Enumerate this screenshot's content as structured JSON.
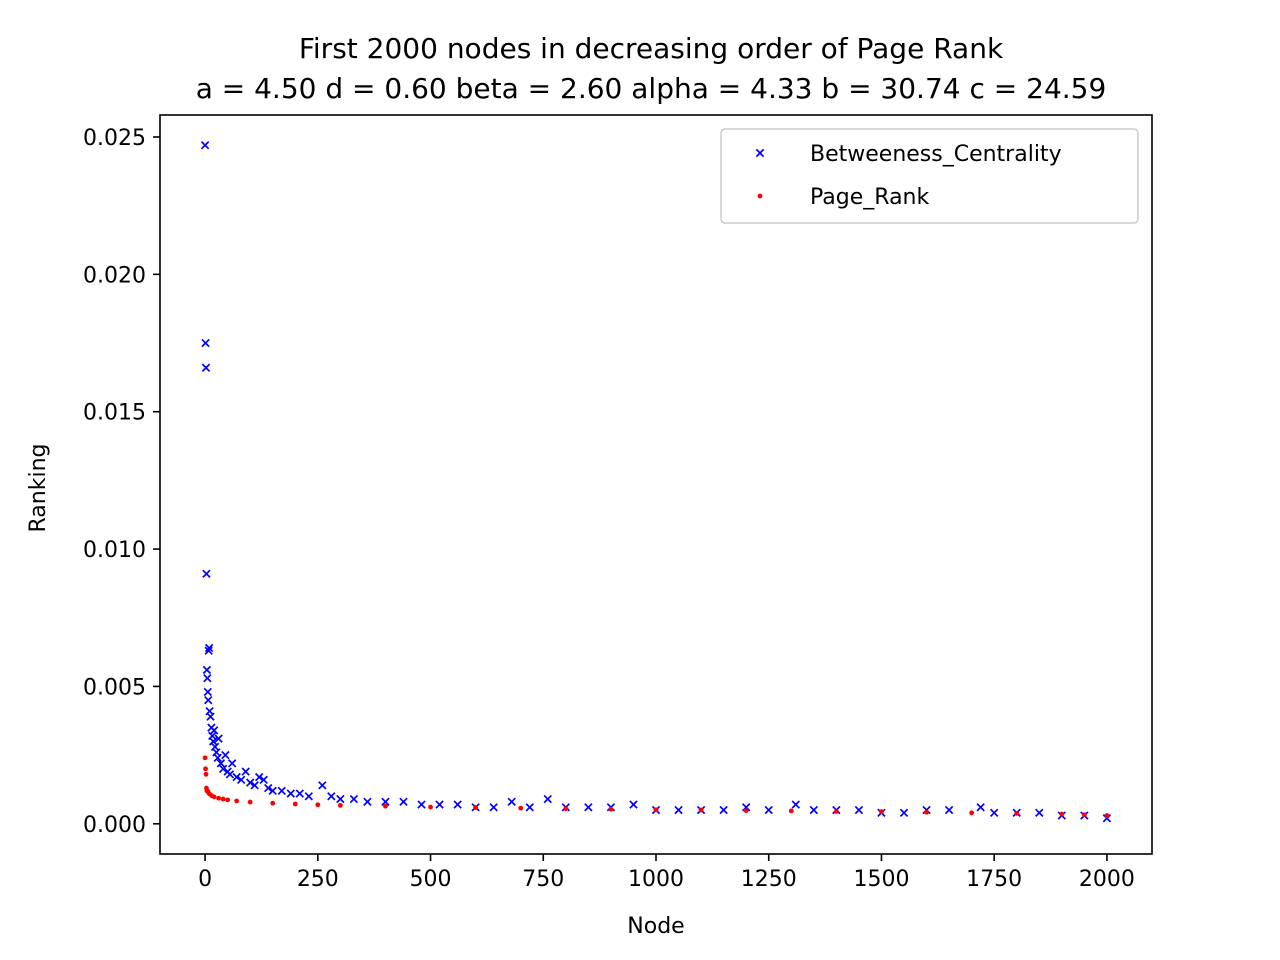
{
  "chart_data": {
    "type": "scatter",
    "title": "First 2000 nodes in decreasing order of Page Rank",
    "subtitle": "a = 4.50 d = 0.60 beta = 2.60 alpha = 4.33 b = 30.74 c = 24.59",
    "xlabel": "Node",
    "ylabel": "Ranking",
    "xlim": [
      -100,
      2100
    ],
    "ylim": [
      -0.0011,
      0.0258
    ],
    "xticks": [
      0,
      250,
      500,
      750,
      1000,
      1250,
      1500,
      1750,
      2000
    ],
    "xtick_labels": [
      "0",
      "250",
      "500",
      "750",
      "1000",
      "1250",
      "1500",
      "1750",
      "2000"
    ],
    "yticks": [
      0.0,
      0.005,
      0.01,
      0.015,
      0.02,
      0.025
    ],
    "ytick_labels": [
      "0.000",
      "0.005",
      "0.010",
      "0.015",
      "0.020",
      "0.025"
    ],
    "grid": false,
    "legend": {
      "position": "top-right",
      "entries": [
        "Betweeness_Centrality",
        "Page_Rank"
      ]
    },
    "series": [
      {
        "name": "Betweeness_Centrality",
        "marker": "x",
        "color": "#0000ff",
        "points": [
          [
            0,
            0.0247
          ],
          [
            1,
            0.0175
          ],
          [
            2,
            0.0166
          ],
          [
            3,
            0.0091
          ],
          [
            4,
            0.0056
          ],
          [
            5,
            0.0053
          ],
          [
            6,
            0.0048
          ],
          [
            7,
            0.0045
          ],
          [
            8,
            0.0063
          ],
          [
            9,
            0.0064
          ],
          [
            10,
            0.0041
          ],
          [
            12,
            0.0039
          ],
          [
            14,
            0.0035
          ],
          [
            16,
            0.0032
          ],
          [
            18,
            0.003
          ],
          [
            20,
            0.0034
          ],
          [
            22,
            0.0028
          ],
          [
            25,
            0.0026
          ],
          [
            28,
            0.0024
          ],
          [
            30,
            0.0031
          ],
          [
            35,
            0.0022
          ],
          [
            40,
            0.002
          ],
          [
            45,
            0.0025
          ],
          [
            50,
            0.0019
          ],
          [
            55,
            0.0018
          ],
          [
            60,
            0.0022
          ],
          [
            70,
            0.0017
          ],
          [
            80,
            0.0016
          ],
          [
            90,
            0.0019
          ],
          [
            100,
            0.0015
          ],
          [
            110,
            0.0014
          ],
          [
            120,
            0.0017
          ],
          [
            130,
            0.0016
          ],
          [
            140,
            0.0013
          ],
          [
            150,
            0.0012
          ],
          [
            170,
            0.0012
          ],
          [
            190,
            0.0011
          ],
          [
            210,
            0.0011
          ],
          [
            230,
            0.001
          ],
          [
            260,
            0.0014
          ],
          [
            280,
            0.001
          ],
          [
            300,
            0.0009
          ],
          [
            330,
            0.0009
          ],
          [
            360,
            0.0008
          ],
          [
            400,
            0.0008
          ],
          [
            440,
            0.0008
          ],
          [
            480,
            0.0007
          ],
          [
            520,
            0.0007
          ],
          [
            560,
            0.0007
          ],
          [
            600,
            0.0006
          ],
          [
            640,
            0.0006
          ],
          [
            680,
            0.0008
          ],
          [
            720,
            0.0006
          ],
          [
            760,
            0.0009
          ],
          [
            800,
            0.0006
          ],
          [
            850,
            0.0006
          ],
          [
            900,
            0.0006
          ],
          [
            950,
            0.0007
          ],
          [
            1000,
            0.0005
          ],
          [
            1050,
            0.0005
          ],
          [
            1100,
            0.0005
          ],
          [
            1150,
            0.0005
          ],
          [
            1200,
            0.0006
          ],
          [
            1250,
            0.0005
          ],
          [
            1310,
            0.0007
          ],
          [
            1350,
            0.0005
          ],
          [
            1400,
            0.0005
          ],
          [
            1450,
            0.0005
          ],
          [
            1500,
            0.0004
          ],
          [
            1550,
            0.0004
          ],
          [
            1600,
            0.0005
          ],
          [
            1650,
            0.0005
          ],
          [
            1720,
            0.0006
          ],
          [
            1750,
            0.0004
          ],
          [
            1800,
            0.0004
          ],
          [
            1850,
            0.0004
          ],
          [
            1900,
            0.0003
          ],
          [
            1950,
            0.0003
          ],
          [
            2000,
            0.0002
          ]
        ]
      },
      {
        "name": "Page_Rank",
        "marker": "dot",
        "color": "#ff0000",
        "points": [
          [
            0,
            0.0024
          ],
          [
            1,
            0.002
          ],
          [
            2,
            0.0018
          ],
          [
            3,
            0.0013
          ],
          [
            4,
            0.0012
          ],
          [
            6,
            0.00118
          ],
          [
            8,
            0.00112
          ],
          [
            10,
            0.00108
          ],
          [
            15,
            0.00102
          ],
          [
            20,
            0.00098
          ],
          [
            30,
            0.00093
          ],
          [
            40,
            0.0009
          ],
          [
            50,
            0.00087
          ],
          [
            70,
            0.00083
          ],
          [
            100,
            0.00079
          ],
          [
            150,
            0.00075
          ],
          [
            200,
            0.00072
          ],
          [
            250,
            0.00069
          ],
          [
            300,
            0.00067
          ],
          [
            400,
            0.00064
          ],
          [
            500,
            0.00061
          ],
          [
            600,
            0.00059
          ],
          [
            700,
            0.00057
          ],
          [
            800,
            0.00055
          ],
          [
            900,
            0.00053
          ],
          [
            1000,
            0.00051
          ],
          [
            1100,
            0.0005
          ],
          [
            1200,
            0.00048
          ],
          [
            1300,
            0.00047
          ],
          [
            1400,
            0.00045
          ],
          [
            1500,
            0.00044
          ],
          [
            1600,
            0.00042
          ],
          [
            1700,
            0.0004
          ],
          [
            1800,
            0.00038
          ],
          [
            1900,
            0.00035
          ],
          [
            1950,
            0.00033
          ],
          [
            2000,
            0.0003
          ]
        ]
      }
    ]
  }
}
